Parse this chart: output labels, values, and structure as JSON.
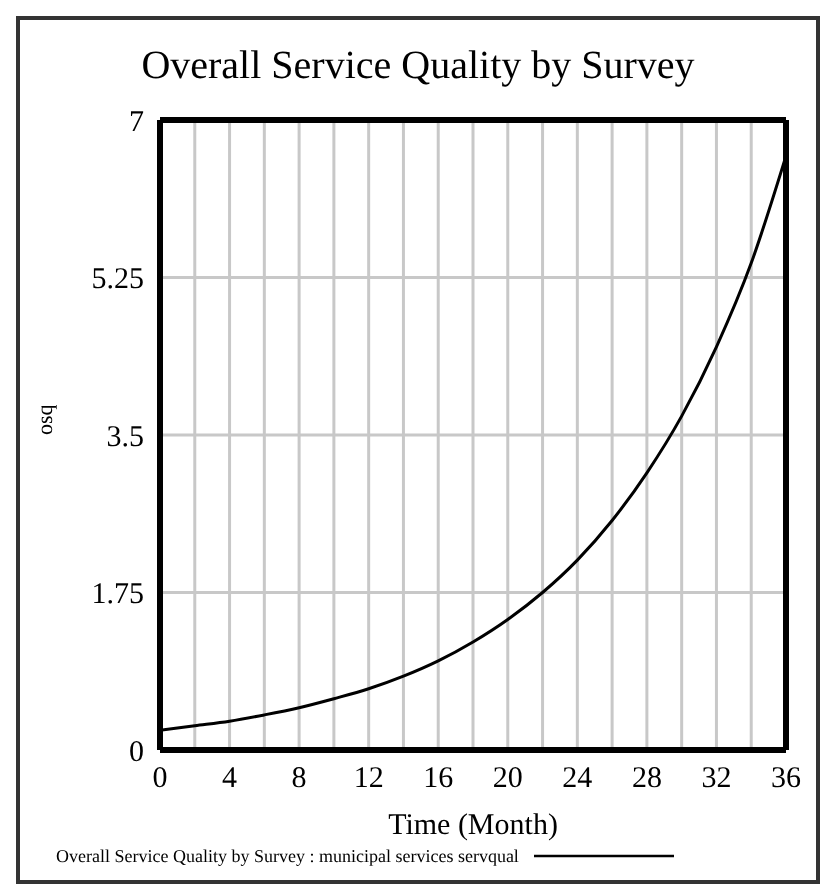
{
  "chart_data": {
    "type": "line",
    "title": "Overall Service Quality by Survey",
    "xlabel": "Time (Month)",
    "ylabel": "osq",
    "x": [
      0,
      2,
      4,
      6,
      8,
      10,
      12,
      14,
      16,
      18,
      20,
      22,
      24,
      26,
      28,
      30,
      32,
      34,
      36
    ],
    "series": [
      {
        "name": "Overall Service Quality by Survey : municipal services servqual",
        "color": "#000000",
        "values": [
          0.22,
          0.27,
          0.32,
          0.39,
          0.47,
          0.57,
          0.68,
          0.82,
          0.99,
          1.2,
          1.45,
          1.75,
          2.11,
          2.55,
          3.08,
          3.71,
          4.48,
          5.41,
          6.6
        ]
      }
    ],
    "xlim": [
      0,
      36
    ],
    "xticks": [
      0,
      {
        "value": 2,
        "label": null
      },
      4,
      {
        "value": 6,
        "label": null
      },
      8,
      {
        "value": 10,
        "label": null
      },
      12,
      {
        "value": 14,
        "label": null
      },
      16,
      {
        "value": 18,
        "label": null
      },
      20,
      {
        "value": 22,
        "label": null
      },
      24,
      {
        "value": 26,
        "label": null
      },
      28,
      {
        "value": 30,
        "label": null
      },
      32,
      {
        "value": 34,
        "label": null
      },
      36
    ],
    "ylim": [
      0,
      7
    ],
    "yticks": [
      0,
      1.75,
      3.5,
      5.25,
      7
    ],
    "grid": true,
    "legend": "bottom",
    "marker": "none",
    "line_style": "solid"
  }
}
